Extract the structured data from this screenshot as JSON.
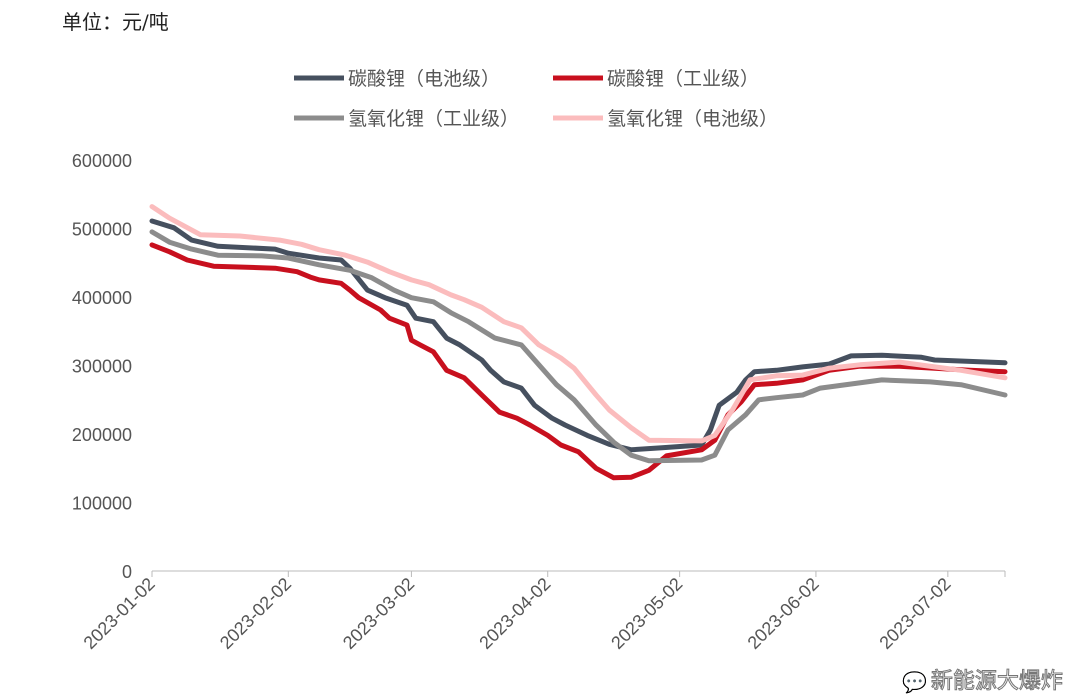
{
  "chart_data": {
    "type": "line",
    "unit_label": "单位：元/吨",
    "x_unit": "days since 2023-01-02",
    "xlim": [
      0,
      194
    ],
    "ylim": [
      0,
      600000
    ],
    "y_ticks": [
      0,
      100000,
      200000,
      300000,
      400000,
      500000,
      600000
    ],
    "y_tick_labels": [
      "0",
      "100000",
      "200000",
      "300000",
      "400000",
      "500000",
      "600000"
    ],
    "x_ticks": [
      0,
      31,
      59,
      90,
      120,
      151,
      181
    ],
    "x_tick_labels": [
      "2023-01-02",
      "2023-02-02",
      "2023-03-02",
      "2023-04-02",
      "2023-05-02",
      "2023-06-02",
      "2023-07-02"
    ],
    "legend_placement": "top",
    "series": [
      {
        "name": "碳酸锂（电池级）",
        "color": "#46505f",
        "points": [
          [
            0,
            511000
          ],
          [
            5,
            501000
          ],
          [
            9,
            483000
          ],
          [
            15,
            474000
          ],
          [
            28,
            470000
          ],
          [
            31,
            464000
          ],
          [
            38,
            457000
          ],
          [
            43,
            454000
          ],
          [
            45,
            442000
          ],
          [
            49,
            410000
          ],
          [
            53,
            399000
          ],
          [
            58,
            388000
          ],
          [
            60,
            369000
          ],
          [
            64,
            364000
          ],
          [
            67,
            340000
          ],
          [
            70,
            330000
          ],
          [
            75,
            308000
          ],
          [
            77,
            293000
          ],
          [
            80,
            276000
          ],
          [
            84,
            267000
          ],
          [
            87,
            242000
          ],
          [
            91,
            223000
          ],
          [
            94,
            213000
          ],
          [
            99,
            198000
          ],
          [
            104,
            185000
          ],
          [
            109,
            177000
          ],
          [
            116,
            180000
          ],
          [
            125,
            184000
          ],
          [
            127,
            206000
          ],
          [
            129,
            242000
          ],
          [
            133,
            261000
          ],
          [
            135,
            279000
          ],
          [
            137,
            291000
          ],
          [
            142,
            293000
          ],
          [
            148,
            298000
          ],
          [
            154,
            302000
          ],
          [
            159,
            314000
          ],
          [
            166,
            315000
          ],
          [
            175,
            312000
          ],
          [
            178,
            308000
          ],
          [
            194,
            304000
          ]
        ]
      },
      {
        "name": "碳酸锂（工业级）",
        "color": "#c8101e",
        "points": [
          [
            0,
            476000
          ],
          [
            4,
            466000
          ],
          [
            8,
            454000
          ],
          [
            14,
            445000
          ],
          [
            28,
            442000
          ],
          [
            33,
            437000
          ],
          [
            36,
            429000
          ],
          [
            38,
            425000
          ],
          [
            43,
            420000
          ],
          [
            45,
            410000
          ],
          [
            47,
            399000
          ],
          [
            52,
            381000
          ],
          [
            54,
            369000
          ],
          [
            58,
            359000
          ],
          [
            59,
            337000
          ],
          [
            61,
            330000
          ],
          [
            64,
            320000
          ],
          [
            67,
            293000
          ],
          [
            71,
            282000
          ],
          [
            75,
            257000
          ],
          [
            79,
            232000
          ],
          [
            83,
            223000
          ],
          [
            86,
            213000
          ],
          [
            90,
            198000
          ],
          [
            93,
            184000
          ],
          [
            97,
            174000
          ],
          [
            101,
            150000
          ],
          [
            105,
            136000
          ],
          [
            109,
            137000
          ],
          [
            113,
            147000
          ],
          [
            117,
            168000
          ],
          [
            125,
            177000
          ],
          [
            128,
            191000
          ],
          [
            131,
            228000
          ],
          [
            134,
            247000
          ],
          [
            137,
            272000
          ],
          [
            142,
            274000
          ],
          [
            148,
            279000
          ],
          [
            154,
            293000
          ],
          [
            161,
            299000
          ],
          [
            170,
            299000
          ],
          [
            178,
            296000
          ],
          [
            186,
            293000
          ],
          [
            194,
            291000
          ]
        ]
      },
      {
        "name": "氢氧化锂（工业级）",
        "color": "#8c8c8c",
        "points": [
          [
            0,
            495000
          ],
          [
            4,
            480000
          ],
          [
            9,
            470000
          ],
          [
            15,
            461000
          ],
          [
            25,
            460000
          ],
          [
            31,
            457000
          ],
          [
            38,
            447000
          ],
          [
            45,
            439000
          ],
          [
            50,
            428000
          ],
          [
            55,
            410000
          ],
          [
            59,
            399000
          ],
          [
            64,
            393000
          ],
          [
            68,
            377000
          ],
          [
            72,
            364000
          ],
          [
            78,
            340000
          ],
          [
            84,
            330000
          ],
          [
            88,
            301000
          ],
          [
            92,
            272000
          ],
          [
            96,
            250000
          ],
          [
            101,
            213000
          ],
          [
            105,
            188000
          ],
          [
            109,
            169000
          ],
          [
            113,
            161000
          ],
          [
            125,
            162000
          ],
          [
            128,
            169000
          ],
          [
            131,
            206000
          ],
          [
            135,
            228000
          ],
          [
            138,
            250000
          ],
          [
            142,
            253000
          ],
          [
            148,
            257000
          ],
          [
            152,
            267000
          ],
          [
            159,
            273000
          ],
          [
            166,
            279000
          ],
          [
            177,
            276000
          ],
          [
            184,
            272000
          ],
          [
            194,
            257000
          ]
        ]
      },
      {
        "name": "氢氧化锂（电池级）",
        "color": "#fbbcbd",
        "points": [
          [
            0,
            532000
          ],
          [
            4,
            515000
          ],
          [
            11,
            491000
          ],
          [
            20,
            489000
          ],
          [
            29,
            483000
          ],
          [
            34,
            477000
          ],
          [
            38,
            469000
          ],
          [
            44,
            461000
          ],
          [
            49,
            451000
          ],
          [
            54,
            437000
          ],
          [
            59,
            425000
          ],
          [
            63,
            418000
          ],
          [
            68,
            403000
          ],
          [
            71,
            396000
          ],
          [
            75,
            385000
          ],
          [
            80,
            364000
          ],
          [
            84,
            355000
          ],
          [
            88,
            330000
          ],
          [
            93,
            311000
          ],
          [
            96,
            296000
          ],
          [
            101,
            257000
          ],
          [
            104,
            235000
          ],
          [
            109,
            209000
          ],
          [
            113,
            191000
          ],
          [
            125,
            190000
          ],
          [
            128,
            198000
          ],
          [
            132,
            235000
          ],
          [
            136,
            279000
          ],
          [
            142,
            285000
          ],
          [
            148,
            286000
          ],
          [
            154,
            296000
          ],
          [
            161,
            301000
          ],
          [
            170,
            305000
          ],
          [
            178,
            298000
          ],
          [
            184,
            293000
          ],
          [
            194,
            282000
          ]
        ]
      }
    ]
  },
  "watermark": "新能源大爆炸"
}
